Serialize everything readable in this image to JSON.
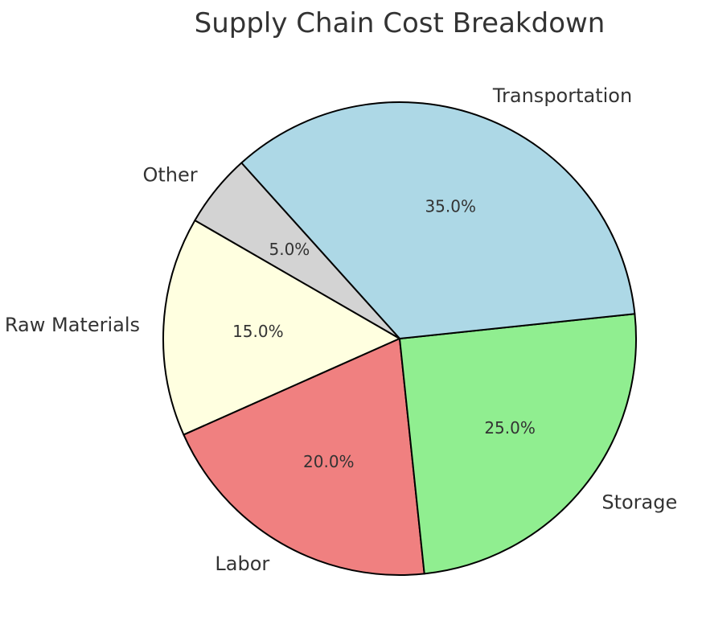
{
  "chart_data": {
    "type": "pie",
    "title": "Supply Chain Cost Breakdown",
    "categories": [
      "Raw Materials",
      "Labor",
      "Storage",
      "Transportation",
      "Other"
    ],
    "values": [
      15,
      20,
      25,
      35,
      5
    ],
    "percent_labels": [
      "15.0%",
      "20.0%",
      "25.0%",
      "35.0%",
      "5.0%"
    ],
    "colors": [
      "#ffffe0",
      "#f08080",
      "#90ee90",
      "#add8e6",
      "#d3d3d3"
    ],
    "start_angle_deg": 150,
    "direction": "counterclockwise",
    "legend": "none"
  }
}
